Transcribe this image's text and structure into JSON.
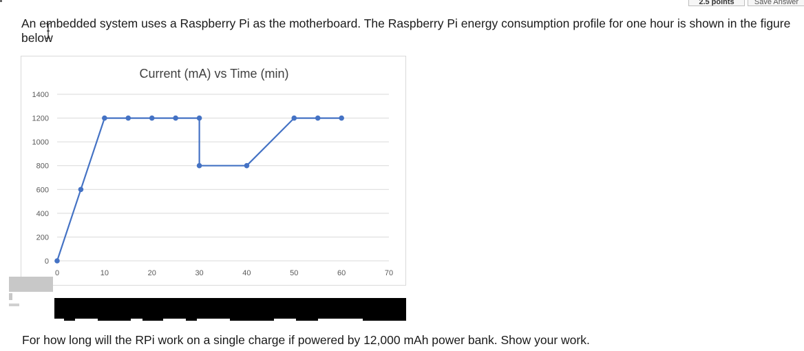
{
  "header": {
    "points_label": "2.5 points",
    "save_label": "Save Answer"
  },
  "question": {
    "text": "An embedded system uses a Raspberry Pi as the motherboard. The Raspberry Pi energy consumption profile for one hour is shown in the figure below"
  },
  "followup": {
    "text": "For how long will the RPi work on a single charge if powered by 12,000 mAh power bank. Show your work."
  },
  "chart_data": {
    "type": "line",
    "title": "Current (mA) vs Time (min)",
    "xlabel": "",
    "ylabel": "",
    "x_ticks": [
      "0",
      "10",
      "20",
      "30",
      "40",
      "50",
      "60",
      "70"
    ],
    "y_ticks": [
      "0",
      "200",
      "400",
      "600",
      "800",
      "1000",
      "1200",
      "1400"
    ],
    "xlim": [
      0,
      70
    ],
    "ylim": [
      0,
      1400
    ],
    "grid": true,
    "legend": "none",
    "series": [
      {
        "color": "#4472C4",
        "x": [
          0,
          5,
          10,
          15,
          20,
          25,
          30,
          30,
          40,
          50,
          55,
          60
        ],
        "y": [
          0,
          600,
          1200,
          1200,
          1200,
          1200,
          1200,
          800,
          800,
          1200,
          1200,
          1200
        ]
      }
    ]
  }
}
